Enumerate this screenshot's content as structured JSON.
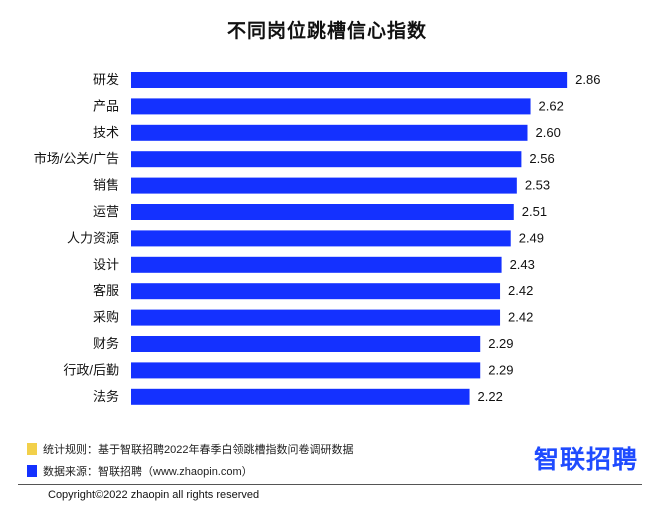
{
  "colors": {
    "bar": "#1431ff",
    "note_yellow": "#f2d04a",
    "note_blue": "#1431ff",
    "brand": "#1f4bff"
  },
  "chart_data": {
    "type": "bar",
    "orientation": "horizontal",
    "title": "不同岗位跳槽信心指数",
    "categories": [
      "研发",
      "产品",
      "技术",
      "市场/公关/广告",
      "销售",
      "运营",
      "人力资源",
      "设计",
      "客服",
      "采购",
      "财务",
      "行政/后勤",
      "法务"
    ],
    "values": [
      2.86,
      2.62,
      2.6,
      2.56,
      2.53,
      2.51,
      2.49,
      2.43,
      2.42,
      2.42,
      2.29,
      2.29,
      2.22
    ],
    "value_labels": [
      "2.86",
      "2.62",
      "2.60",
      "2.56",
      "2.53",
      "2.51",
      "2.49",
      "2.43",
      "2.42",
      "2.42",
      "2.29",
      "2.29",
      "2.22"
    ],
    "xlim": [
      0,
      3.2
    ],
    "grid": false,
    "legend": "none"
  },
  "footer": {
    "rule_note": "统计规则：基于智联招聘2022年春季白领跳槽指数问卷调研数据",
    "source_note": "数据来源：智联招聘（www.zhaopin.com）",
    "brand": "智联招聘",
    "copyright": "Copyright©2022 zhaopin all rights reserved"
  }
}
